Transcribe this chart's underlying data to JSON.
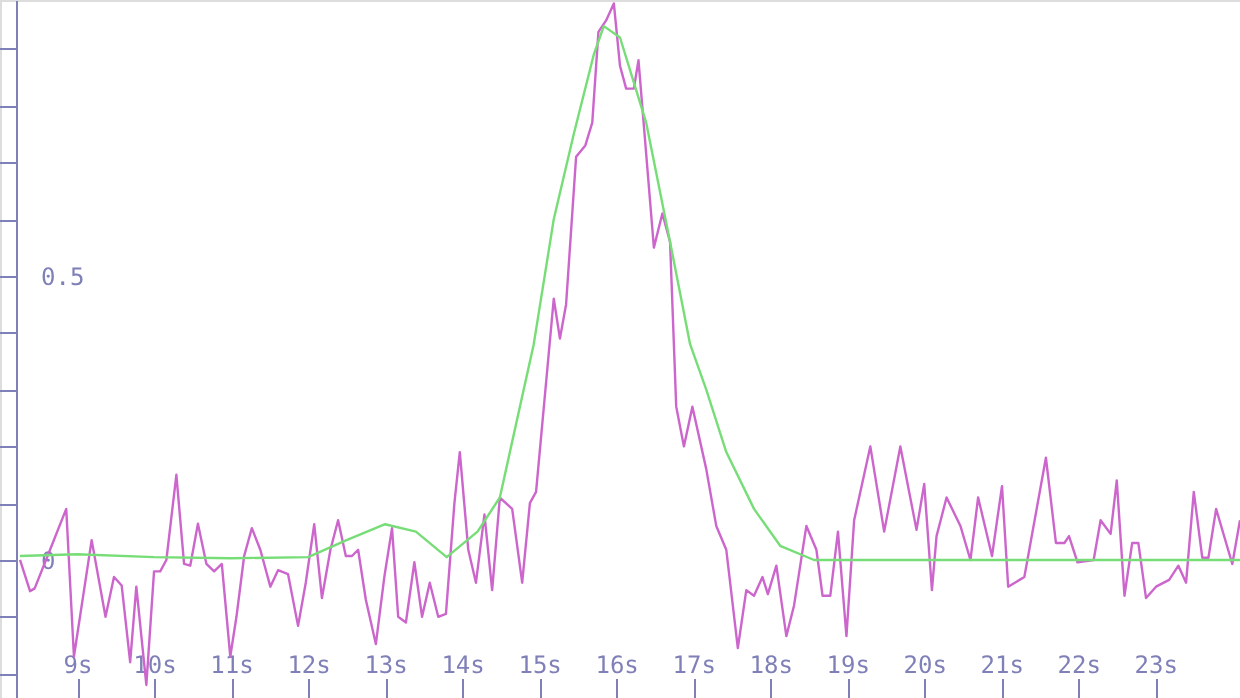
{
  "chart_data": {
    "type": "line",
    "xlim": [
      8.0,
      24.1
    ],
    "ylim": [
      -0.243,
      0.986
    ],
    "xticks": [
      {
        "value": 9,
        "label": "9s"
      },
      {
        "value": 10,
        "label": "10s"
      },
      {
        "value": 11,
        "label": "11s"
      },
      {
        "value": 12,
        "label": "12s"
      },
      {
        "value": 13,
        "label": "13s"
      },
      {
        "value": 14,
        "label": "14s"
      },
      {
        "value": 15,
        "label": "15s"
      },
      {
        "value": 16,
        "label": "16s"
      },
      {
        "value": 17,
        "label": "17s"
      },
      {
        "value": 18,
        "label": "18s"
      },
      {
        "value": 19,
        "label": "19s"
      },
      {
        "value": 20,
        "label": "20s"
      },
      {
        "value": 21,
        "label": "21s"
      },
      {
        "value": 22,
        "label": "22s"
      },
      {
        "value": 23,
        "label": "23s"
      }
    ],
    "yticks": [
      {
        "value": -0.2,
        "label": null
      },
      {
        "value": -0.1,
        "label": null
      },
      0,
      {
        "value": 0.1,
        "label": null
      },
      {
        "value": 0.2,
        "label": null
      },
      {
        "value": 0.3,
        "label": null
      },
      {
        "value": 0.4,
        "label": null
      },
      0.5,
      {
        "value": 0.6,
        "label": null
      },
      {
        "value": 0.7,
        "label": null
      },
      {
        "value": 0.8,
        "label": null
      },
      {
        "value": 0.9,
        "label": null
      }
    ],
    "grid": false,
    "legend": false,
    "marker": "none",
    "line_style": "solid",
    "series": [
      {
        "color": "#cc66cc",
        "x": [
          8.26,
          8.39,
          8.45,
          8.65,
          8.86,
          8.96,
          9.19,
          9.37,
          9.48,
          9.58,
          9.69,
          9.77,
          9.9,
          10.0,
          10.08,
          10.16,
          10.29,
          10.39,
          10.47,
          10.57,
          10.68,
          10.78,
          10.88,
          10.99,
          11.07,
          11.17,
          11.27,
          11.38,
          11.51,
          11.61,
          11.74,
          11.87,
          11.97,
          12.08,
          12.18,
          12.29,
          12.39,
          12.49,
          12.57,
          12.65,
          12.75,
          12.88,
          12.99,
          13.09,
          13.17,
          13.27,
          13.38,
          13.48,
          13.58,
          13.69,
          13.79,
          13.9,
          13.97,
          14.08,
          14.18,
          14.29,
          14.39,
          14.49,
          14.65,
          14.78,
          14.88,
          14.96,
          15.19,
          15.27,
          15.35,
          15.48,
          15.6,
          15.69,
          15.77,
          15.87,
          15.97,
          16.05,
          16.13,
          16.23,
          16.29,
          16.49,
          16.6,
          16.7,
          16.78,
          16.88,
          16.99,
          17.17,
          17.3,
          17.43,
          17.58,
          17.69,
          17.79,
          17.9,
          17.97,
          18.08,
          18.21,
          18.31,
          18.47,
          18.6,
          18.68,
          18.78,
          18.88,
          18.99,
          19.09,
          19.3,
          19.48,
          19.69,
          19.9,
          20.0,
          20.1,
          20.16,
          20.29,
          20.47,
          20.6,
          20.7,
          20.88,
          21.01,
          21.09,
          21.3,
          21.58,
          21.71,
          21.82,
          21.88,
          21.99,
          22.2,
          22.29,
          22.42,
          22.5,
          22.6,
          22.7,
          22.78,
          22.88,
          23.01,
          23.18,
          23.3,
          23.4,
          23.5,
          23.61,
          23.69,
          23.79,
          24.0,
          24.1
        ],
        "values": [
          0,
          -0.055,
          -0.05,
          0.018,
          0.09,
          -0.17,
          0.035,
          -0.1,
          -0.03,
          -0.045,
          -0.18,
          -0.047,
          -0.22,
          -0.02,
          -0.02,
          0,
          0.15,
          -0.007,
          -0.01,
          0.064,
          -0.007,
          -0.02,
          -0.007,
          -0.17,
          -0.1,
          0.007,
          0.056,
          0.018,
          -0.047,
          -0.018,
          -0.025,
          -0.116,
          -0.04,
          0.063,
          -0.067,
          0.018,
          0.07,
          0.007,
          0.007,
          0.018,
          -0.07,
          -0.148,
          -0.03,
          0.056,
          -0.1,
          -0.11,
          -0.004,
          -0.1,
          -0.04,
          -0.1,
          -0.095,
          0.1,
          0.19,
          0.018,
          -0.04,
          0.08,
          -0.053,
          0.11,
          0.09,
          -0.04,
          0.1,
          0.12,
          0.46,
          0.39,
          0.45,
          0.71,
          0.73,
          0.77,
          0.93,
          0.95,
          0.98,
          0.87,
          0.83,
          0.83,
          0.88,
          0.55,
          0.61,
          0.56,
          0.27,
          0.2,
          0.27,
          0.16,
          0.06,
          0.018,
          -0.155,
          -0.053,
          -0.063,
          -0.03,
          -0.06,
          -0.01,
          -0.134,
          -0.08,
          0.06,
          0.018,
          -0.063,
          -0.063,
          0.05,
          -0.134,
          0.07,
          0.2,
          0.05,
          0.2,
          0.053,
          0.134,
          -0.053,
          0.042,
          0.11,
          0.06,
          0,
          0.11,
          0.007,
          0.13,
          -0.047,
          -0.03,
          0.18,
          0.03,
          0.03,
          0.042,
          -0.004,
          0,
          0.07,
          0.046,
          0.14,
          -0.063,
          0.03,
          0.03,
          -0.067,
          -0.047,
          -0.035,
          -0.01,
          -0.04,
          0.12,
          0.004,
          0.004,
          0.09,
          -0.007,
          0.07
        ]
      },
      {
        "color": "#77dd77",
        "x": [
          8.26,
          9.0,
          10.0,
          11.0,
          12.0,
          12.5,
          13.0,
          13.4,
          13.8,
          14.2,
          14.49,
          14.93,
          15.19,
          15.45,
          15.71,
          15.84,
          16.05,
          16.39,
          16.7,
          16.96,
          17.17,
          17.43,
          17.79,
          18.13,
          18.57,
          20.0,
          22.0,
          24.1
        ],
        "values": [
          0.007,
          0.01,
          0.005,
          0.003,
          0.005,
          0.035,
          0.063,
          0.05,
          0.005,
          0.05,
          0.11,
          0.38,
          0.6,
          0.75,
          0.89,
          0.94,
          0.92,
          0.77,
          0.56,
          0.38,
          0.3,
          0.19,
          0.09,
          0.025,
          0.0,
          0.0,
          0.0,
          0.0
        ]
      }
    ]
  }
}
